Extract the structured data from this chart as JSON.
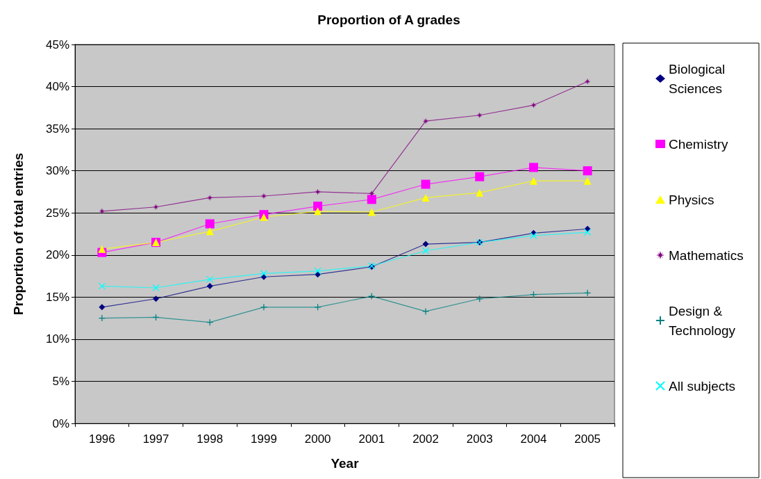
{
  "chart_data": {
    "type": "line",
    "title": "Proportion of A grades",
    "xlabel": "Year",
    "ylabel": "Proportion of total entries",
    "categories": [
      "1996",
      "1997",
      "1998",
      "1999",
      "2000",
      "2001",
      "2002",
      "2003",
      "2004",
      "2005"
    ],
    "series": [
      {
        "name": "Biological Sciences",
        "color": "#000080",
        "marker": "diamond",
        "values": [
          13.8,
          14.8,
          16.3,
          17.4,
          17.7,
          18.6,
          21.3,
          21.5,
          22.6,
          23.1
        ]
      },
      {
        "name": "Chemistry",
        "color": "#ff00ff",
        "marker": "square",
        "values": [
          20.3,
          21.5,
          23.7,
          24.8,
          25.8,
          26.6,
          28.4,
          29.3,
          30.4,
          30.0
        ]
      },
      {
        "name": "Physics",
        "color": "#ffff00",
        "marker": "triangle",
        "values": [
          20.7,
          21.5,
          22.8,
          24.5,
          25.2,
          25.1,
          26.8,
          27.4,
          28.8,
          28.8
        ]
      },
      {
        "name": "Mathematics",
        "color": "#800080",
        "marker": "star",
        "values": [
          25.2,
          25.7,
          26.8,
          27.0,
          27.5,
          27.3,
          35.9,
          36.6,
          37.8,
          40.6
        ]
      },
      {
        "name": "Design & Technology",
        "color": "#008080",
        "marker": "cross",
        "values": [
          12.5,
          12.6,
          12.0,
          13.8,
          13.8,
          15.1,
          13.3,
          14.8,
          15.3,
          15.5
        ]
      },
      {
        "name": "All subjects",
        "color": "#00ffff",
        "marker": "x",
        "values": [
          16.3,
          16.1,
          17.1,
          17.8,
          18.1,
          18.7,
          20.5,
          21.5,
          22.3,
          22.7
        ]
      }
    ],
    "ylim": [
      0,
      45
    ],
    "yticks": [
      {
        "value": 0,
        "label": "0%"
      },
      {
        "value": 5,
        "label": "5%"
      },
      {
        "value": 10,
        "label": "10%"
      },
      {
        "value": 15,
        "label": "15%"
      },
      {
        "value": 20,
        "label": "20%"
      },
      {
        "value": 25,
        "label": "25%"
      },
      {
        "value": 30,
        "label": "30%"
      },
      {
        "value": 35,
        "label": "35%"
      },
      {
        "value": 40,
        "label": "40%"
      },
      {
        "value": 45,
        "label": "45%"
      }
    ],
    "grid": "y",
    "legend": "right",
    "line_style": "solid"
  }
}
